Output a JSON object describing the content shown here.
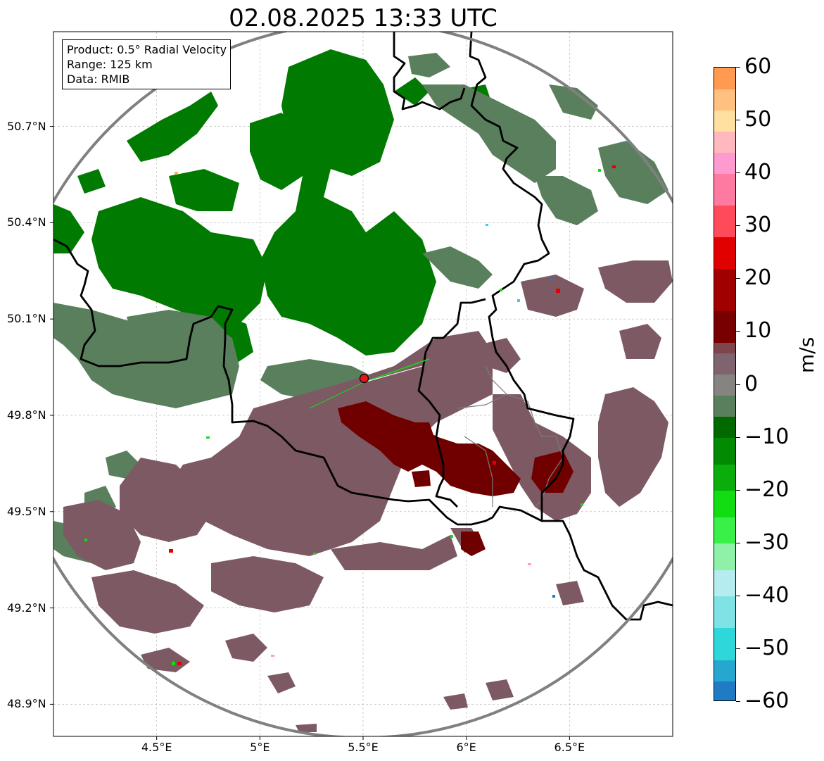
{
  "title": "02.08.2025 13:33 UTC",
  "info": {
    "product": "Product: 0.5° Radial Velocity",
    "range": "Range: 125 km",
    "source": "Data: RMIB"
  },
  "map": {
    "lon_range": [
      4.0,
      7.0
    ],
    "lat_range": [
      48.8,
      50.995
    ],
    "lat_ticks": [
      {
        "value": 50.7,
        "label": "50.7°N"
      },
      {
        "value": 50.4,
        "label": "50.4°N"
      },
      {
        "value": 50.1,
        "label": "50.1°N"
      },
      {
        "value": 49.8,
        "label": "49.8°N"
      },
      {
        "value": 49.5,
        "label": "49.5°N"
      },
      {
        "value": 49.2,
        "label": "49.2°N"
      },
      {
        "value": 48.9,
        "label": "48.9°N"
      }
    ],
    "lon_ticks": [
      {
        "value": 4.5,
        "label": "4.5°E"
      },
      {
        "value": 5.0,
        "label": "5°E"
      },
      {
        "value": 5.5,
        "label": "5.5°E"
      },
      {
        "value": 6.0,
        "label": "6°E"
      },
      {
        "value": 6.5,
        "label": "6.5°E"
      }
    ],
    "radar_site": {
      "lon": 5.505,
      "lat": 49.915,
      "color": "#e0161a"
    },
    "range_ring_color": "#808080",
    "grid": true,
    "echo_colors": {
      "strong_inbound": "#007a00",
      "weak_inbound": "#5a7f5c",
      "weak_outbound": "#7d5a63",
      "strong_outbound": "#700000"
    }
  },
  "colorbar": {
    "unit": "m/s",
    "min": -60,
    "max": 60,
    "ticks": [
      {
        "value": 60,
        "label": "60"
      },
      {
        "value": 50,
        "label": "50"
      },
      {
        "value": 40,
        "label": "40"
      },
      {
        "value": 30,
        "label": "30"
      },
      {
        "value": 20,
        "label": "20"
      },
      {
        "value": 10,
        "label": "10"
      },
      {
        "value": 0,
        "label": "0"
      },
      {
        "value": -10,
        "label": "−10"
      },
      {
        "value": -20,
        "label": "−20"
      },
      {
        "value": -30,
        "label": "−30"
      },
      {
        "value": -40,
        "label": "−40"
      },
      {
        "value": -50,
        "label": "−50"
      },
      {
        "value": -60,
        "label": "−60"
      }
    ],
    "stops": [
      {
        "from": -60,
        "to": -56,
        "color": "#1f7bc4"
      },
      {
        "from": -56,
        "to": -52,
        "color": "#25a7cf"
      },
      {
        "from": -52,
        "to": -46,
        "color": "#2ed8da"
      },
      {
        "from": -46,
        "to": -40,
        "color": "#7fe3e6"
      },
      {
        "from": -40,
        "to": -35,
        "color": "#b4ecef"
      },
      {
        "from": -35,
        "to": -30,
        "color": "#8ff0a8"
      },
      {
        "from": -30,
        "to": -25,
        "color": "#38f048"
      },
      {
        "from": -25,
        "to": -20,
        "color": "#12dc12"
      },
      {
        "from": -20,
        "to": -15,
        "color": "#0aae0a"
      },
      {
        "from": -15,
        "to": -10,
        "color": "#028a02"
      },
      {
        "from": -10,
        "to": -6,
        "color": "#006a00"
      },
      {
        "from": -6,
        "to": -2,
        "color": "#5a7f5c"
      },
      {
        "from": -2,
        "to": 2,
        "color": "#858480"
      },
      {
        "from": 2,
        "to": 6,
        "color": "#7f6470"
      },
      {
        "from": 6,
        "to": 8,
        "color": "#7d454c"
      },
      {
        "from": 8,
        "to": 14,
        "color": "#780000"
      },
      {
        "from": 14,
        "to": 22,
        "color": "#a00000"
      },
      {
        "from": 22,
        "to": 28,
        "color": "#e00000"
      },
      {
        "from": 28,
        "to": 34,
        "color": "#ff4a5a"
      },
      {
        "from": 34,
        "to": 40,
        "color": "#ff7aa0"
      },
      {
        "from": 40,
        "to": 44,
        "color": "#ff9ad0"
      },
      {
        "from": 44,
        "to": 48,
        "color": "#ffb8be"
      },
      {
        "from": 48,
        "to": 52,
        "color": "#ffe0a0"
      },
      {
        "from": 52,
        "to": 56,
        "color": "#ffc080"
      },
      {
        "from": 56,
        "to": 60,
        "color": "#ff9a50"
      }
    ]
  }
}
